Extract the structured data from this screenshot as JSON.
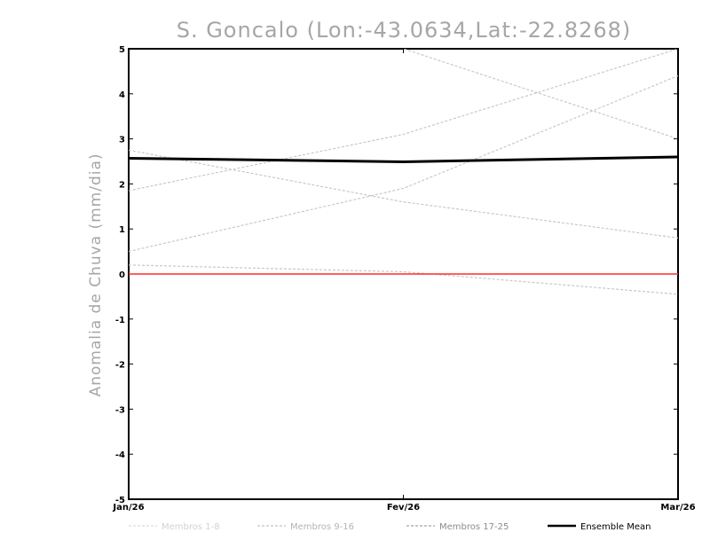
{
  "chart_data": {
    "type": "line",
    "title": "S. Goncalo (Lon:-43.0634,Lat:-22.8268)",
    "ylabel": "Anomalia de Chuva (mm/dia)",
    "xlabel": "",
    "categories": [
      "Jan/26",
      "Fev/26",
      "Mar/26"
    ],
    "ylim": [
      -5,
      5
    ],
    "yticks": [
      "5",
      "4",
      "3",
      "2",
      "1",
      "0",
      "-1",
      "-2",
      "-3",
      "-4",
      "-5"
    ],
    "grid": false,
    "zero_line_color": "#ff2a2a",
    "members": [
      {
        "values": [
          2.75,
          1.6,
          0.8
        ],
        "color": "#c8c8c8"
      },
      {
        "values": [
          1.85,
          3.1,
          5.0
        ],
        "color": "#c8c8c8"
      },
      {
        "values": [
          0.5,
          1.9,
          4.4
        ],
        "color": "#c8c8c8"
      },
      {
        "values": [
          0.2,
          0.05,
          -0.45
        ],
        "color": "#c8c8c8"
      },
      {
        "values": [
          null,
          5.0,
          3.0
        ],
        "color": "#c8c8c8"
      }
    ],
    "series": [
      {
        "name": "Ensemble Mean",
        "values": [
          2.57,
          2.49,
          2.6
        ],
        "color": "#000000"
      }
    ],
    "legend": {
      "placement": "bottom",
      "items": [
        {
          "label": "Membros 1-8",
          "color": "#d2d2d2"
        },
        {
          "label": "Membros 9-16",
          "color": "#b4b4b4"
        },
        {
          "label": "Membros 17-25",
          "color": "#8c8c8c"
        },
        {
          "label": "Ensemble Mean",
          "color": "#000000"
        }
      ]
    }
  }
}
